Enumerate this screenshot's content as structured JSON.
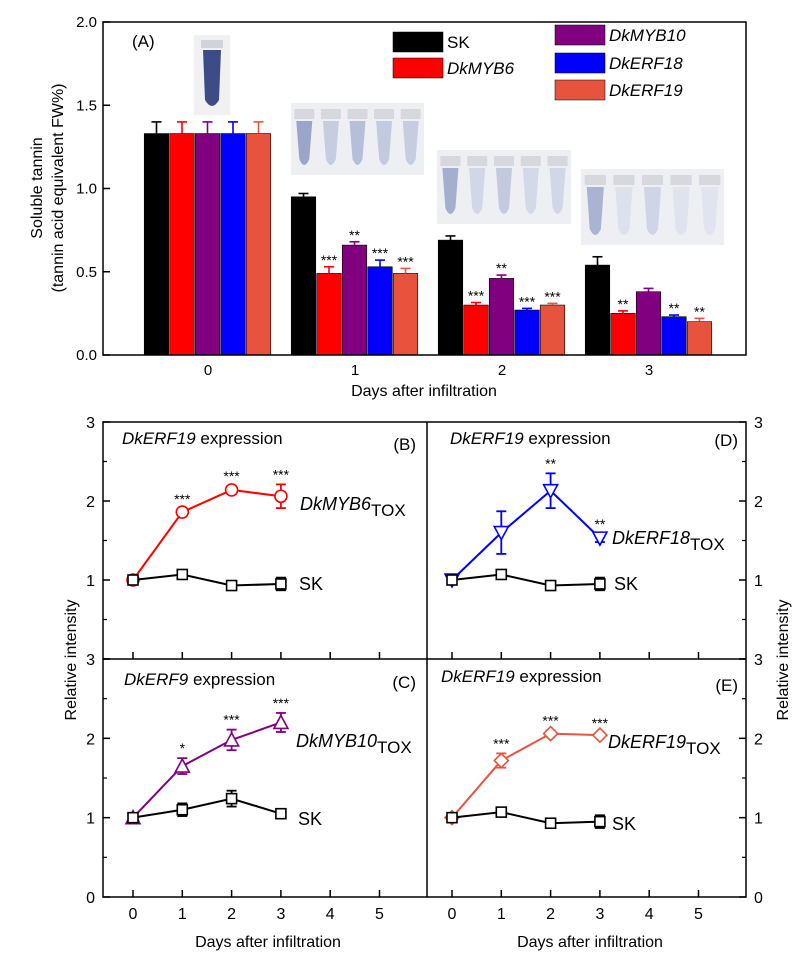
{
  "chart_data": [
    {
      "id": "A",
      "type": "bar",
      "panel_label": "(A)",
      "xlabel": "Days after infiltration",
      "ylabel_line1": "Soluble tannin",
      "ylabel_line2": "(tannin acid equivalent FW%)",
      "ylim": [
        0,
        2.0
      ],
      "yticks": [
        "0.0",
        "0.5",
        "1.0",
        "1.5",
        "2.0"
      ],
      "categories": [
        "0",
        "1",
        "2",
        "3"
      ],
      "legend": [
        "SK",
        "DkMYB6",
        "DkMYB10",
        "DkERF18",
        "DkERF19"
      ],
      "series": [
        {
          "name": "SK",
          "color": "#000000",
          "values": [
            1.33,
            0.95,
            0.69,
            0.54
          ],
          "errors": [
            0.07,
            0.02,
            0.025,
            0.05
          ],
          "sig": [
            "",
            "",
            "",
            ""
          ]
        },
        {
          "name": "DkMYB6",
          "color": "#ff0000",
          "values": [
            1.33,
            0.49,
            0.3,
            0.25
          ],
          "errors": [
            0.07,
            0.04,
            0.015,
            0.015
          ],
          "sig": [
            "",
            "***",
            "***",
            "**"
          ]
        },
        {
          "name": "DkMYB10",
          "color": "#800080",
          "values": [
            1.33,
            0.66,
            0.46,
            0.38
          ],
          "errors": [
            0.07,
            0.02,
            0.02,
            0.02
          ],
          "sig": [
            "",
            "**",
            "**",
            ""
          ]
        },
        {
          "name": "DkERF18",
          "color": "#0000ff",
          "values": [
            1.33,
            0.53,
            0.27,
            0.23
          ],
          "errors": [
            0.07,
            0.04,
            0.01,
            0.01
          ],
          "sig": [
            "",
            "***",
            "***",
            "**"
          ]
        },
        {
          "name": "DkERF19",
          "color": "#e8533d",
          "values": [
            1.33,
            0.49,
            0.3,
            0.2
          ],
          "errors": [
            0.07,
            0.03,
            0.01,
            0.02
          ],
          "sig": [
            "",
            "***",
            "***",
            "**"
          ]
        }
      ]
    },
    {
      "id": "B",
      "type": "line",
      "panel_label": "(B)",
      "title_gene": "DkERF19",
      "title_rest": " expression",
      "x": [
        0,
        1,
        2,
        3
      ],
      "xlim": [
        -0.5,
        6
      ],
      "ylim": [
        0,
        3
      ],
      "series": [
        {
          "name_main": "DkMYB6",
          "name_sub": "TOX",
          "color": "#ff0000",
          "marker": "circle",
          "values": [
            1.0,
            1.86,
            2.14,
            2.06
          ],
          "errors": [
            0.03,
            0.04,
            0.05,
            0.15
          ],
          "sig": [
            "",
            "***",
            "***",
            "***"
          ]
        },
        {
          "name_main": "SK",
          "name_sub": "",
          "color": "#000000",
          "marker": "square",
          "values": [
            1.0,
            1.07,
            0.93,
            0.95
          ],
          "errors": [
            0.02,
            0.04,
            0.05,
            0.08
          ],
          "sig": [
            "",
            "",
            "",
            ""
          ]
        }
      ]
    },
    {
      "id": "D",
      "type": "line",
      "panel_label": "(D)",
      "title_gene": "DkERF19",
      "title_rest": " expression",
      "x": [
        0,
        1,
        2,
        3
      ],
      "xlim": [
        -0.5,
        6
      ],
      "ylim": [
        0,
        3
      ],
      "series": [
        {
          "name_main": "DkERF18",
          "name_sub": "TOX",
          "color": "#0000ff",
          "marker": "triangle-down",
          "values": [
            1.0,
            1.6,
            2.13,
            1.53
          ],
          "errors": [
            0.03,
            0.27,
            0.22,
            0.05
          ],
          "sig": [
            "",
            "",
            "**",
            "**"
          ]
        },
        {
          "name_main": "SK",
          "name_sub": "",
          "color": "#000000",
          "marker": "square",
          "values": [
            1.0,
            1.07,
            0.93,
            0.95
          ],
          "errors": [
            0.02,
            0.04,
            0.05,
            0.08
          ],
          "sig": [
            "",
            "",
            "",
            ""
          ]
        }
      ]
    },
    {
      "id": "C",
      "type": "line",
      "panel_label": "(C)",
      "title_gene": "DkERF9",
      "title_rest": " expression",
      "x": [
        0,
        1,
        2,
        3
      ],
      "xlim": [
        -0.5,
        6
      ],
      "ylim": [
        0,
        3
      ],
      "series": [
        {
          "name_main": "DkMYB10",
          "name_sub": "TOX",
          "color": "#800080",
          "marker": "triangle-up",
          "values": [
            1.0,
            1.65,
            1.98,
            2.2
          ],
          "errors": [
            0.03,
            0.1,
            0.13,
            0.12
          ],
          "sig": [
            "",
            "*",
            "***",
            "***"
          ]
        },
        {
          "name_main": "SK",
          "name_sub": "",
          "color": "#000000",
          "marker": "square",
          "values": [
            1.0,
            1.1,
            1.24,
            1.05
          ],
          "errors": [
            0.02,
            0.08,
            0.1,
            0.04
          ],
          "sig": [
            "",
            "",
            "",
            ""
          ]
        }
      ]
    },
    {
      "id": "E",
      "type": "line",
      "panel_label": "(E)",
      "title_gene": "DkERF19",
      "title_rest": " expression",
      "x": [
        0,
        1,
        2,
        3
      ],
      "xlim": [
        -0.5,
        6
      ],
      "ylim": [
        0,
        3
      ],
      "series": [
        {
          "name_main": "DkERF19",
          "name_sub": "TOX",
          "color": "#e8533d",
          "marker": "diamond",
          "values": [
            1.0,
            1.72,
            2.06,
            2.04
          ],
          "errors": [
            0.03,
            0.09,
            0.04,
            0.03
          ],
          "sig": [
            "",
            "***",
            "***",
            "***"
          ]
        },
        {
          "name_main": "SK",
          "name_sub": "",
          "color": "#000000",
          "marker": "square",
          "values": [
            1.0,
            1.07,
            0.93,
            0.95
          ],
          "errors": [
            0.02,
            0.04,
            0.05,
            0.08
          ],
          "sig": [
            "",
            "",
            "",
            ""
          ]
        }
      ]
    }
  ],
  "lower_axes": {
    "xlabel": "Days after infiltration",
    "ylabel": "Relative intensity",
    "yticks_top": [
      "1",
      "2",
      "3"
    ],
    "yticks_bottom": [
      "0",
      "1",
      "2",
      "3"
    ],
    "xticks": [
      "0",
      "1",
      "2",
      "3",
      "4",
      "5"
    ]
  }
}
